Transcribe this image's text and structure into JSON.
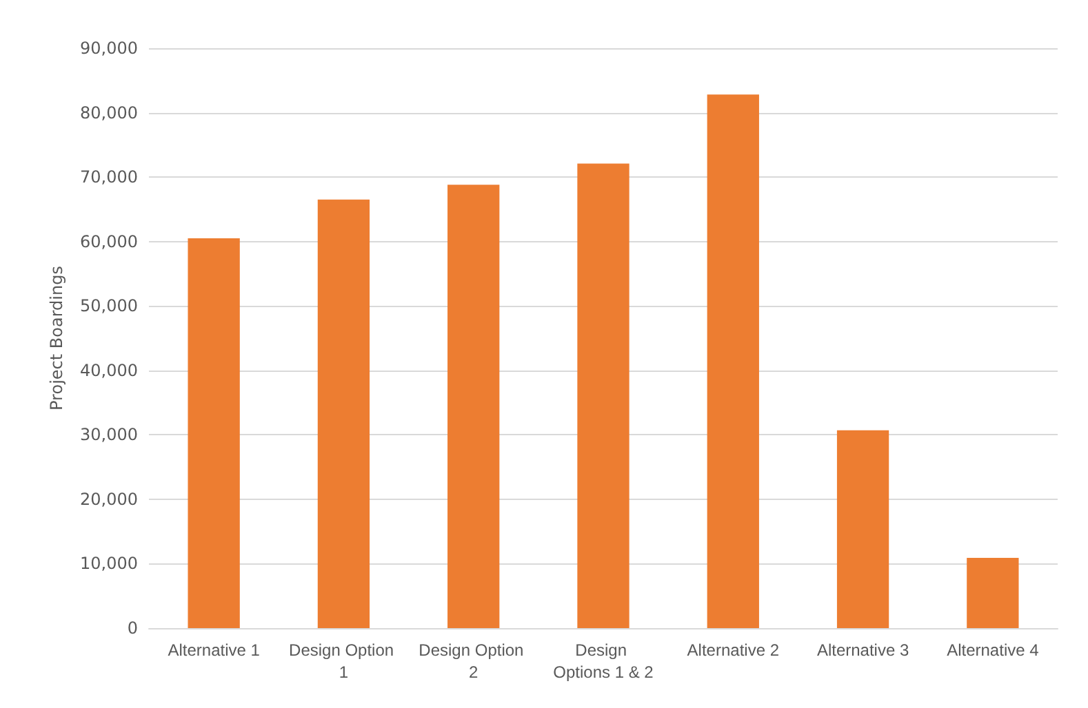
{
  "chart_data": {
    "type": "bar",
    "ylabel": "Project Boardings",
    "categories": [
      "Alternative 1",
      "Design Option 1",
      "Design Option 2",
      "Design Options 1 & 2",
      "Alternative 2",
      "Alternative 3",
      "Alternative 4"
    ],
    "values": [
      60500,
      66500,
      68800,
      72100,
      82800,
      30700,
      10900
    ],
    "color": "#ed7d31",
    "ylim": [
      0,
      90000
    ],
    "yticks": [
      0,
      {
        "value": 10000,
        "label": "10,000"
      },
      {
        "value": 20000,
        "label": "20,000"
      },
      {
        "value": 30000,
        "label": "30,000"
      },
      {
        "value": 40000,
        "label": "40,000"
      },
      {
        "value": 50000,
        "label": "50,000"
      },
      {
        "value": 60000,
        "label": "60,000"
      },
      {
        "value": 70000,
        "label": "70,000"
      },
      {
        "value": 80000,
        "label": "80,000"
      },
      {
        "value": 90000,
        "label": "90,000"
      }
    ],
    "grid": "y"
  }
}
